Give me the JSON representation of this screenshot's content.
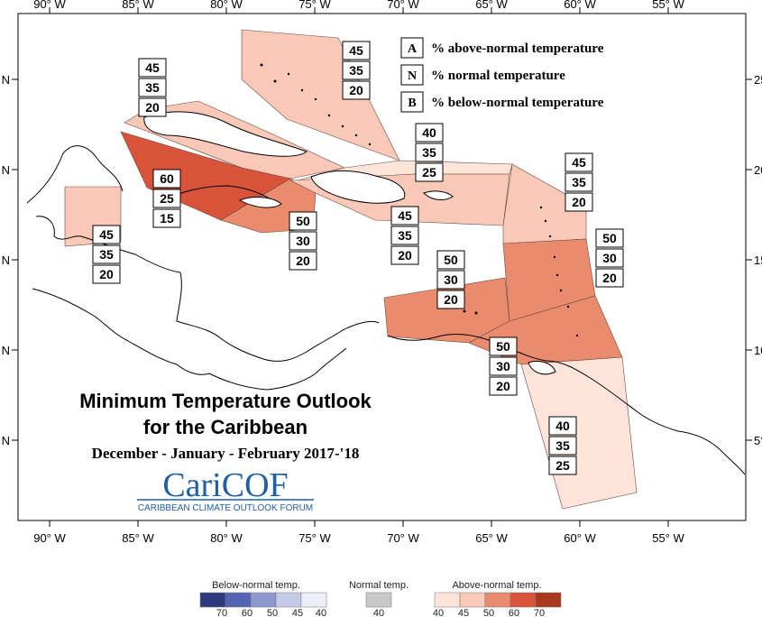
{
  "map": {
    "title_line1": "Minimum Temperature Outlook",
    "title_line2": "for the Caribbean",
    "period": "December - January - February 2017-'18",
    "logo": {
      "name": "CariCOF",
      "tagline": "CARIBBEAN CLIMATE OUTLOOK FORUM",
      "color": "#1f5fa8"
    },
    "longitude_labels": [
      "90° W",
      "85° W",
      "80° W",
      "75° W",
      "70° W",
      "65° W",
      "60° W",
      "55° W"
    ],
    "latitude_labels_left": [
      "N",
      "N",
      "N",
      "N",
      "N"
    ],
    "latitude_labels_right": [
      "25",
      "20",
      "15",
      "10",
      "5°"
    ],
    "key": [
      {
        "letter": "A",
        "text": "% above-normal temperature"
      },
      {
        "letter": "N",
        "text": "% normal temperature"
      },
      {
        "letter": "B",
        "text": "% below-normal temperature"
      }
    ],
    "regions": [
      {
        "id": "bahamas",
        "probs": [
          "45",
          "35",
          "20"
        ],
        "color": "#f9c8b6"
      },
      {
        "id": "cuba",
        "probs": [
          "45",
          "35",
          "20"
        ],
        "color": "#f9c8b6"
      },
      {
        "id": "cayman-jamaica-belt",
        "probs": [
          "60",
          "25",
          "15"
        ],
        "color": "#d9533a"
      },
      {
        "id": "belize",
        "probs": [
          "45",
          "35",
          "20"
        ],
        "color": "#f9c8b6"
      },
      {
        "id": "jamaica",
        "probs": [
          "50",
          "30",
          "20"
        ],
        "color": "#ea8b6e"
      },
      {
        "id": "turks-caicos",
        "probs": [
          "40",
          "35",
          "25"
        ],
        "color": "#fde4db"
      },
      {
        "id": "hispaniola-pr",
        "probs": [
          "45",
          "35",
          "20"
        ],
        "color": "#f9c8b6"
      },
      {
        "id": "leeward-islands",
        "probs": [
          "45",
          "35",
          "20"
        ],
        "color": "#f9c8b6"
      },
      {
        "id": "windward-islands",
        "probs": [
          "50",
          "30",
          "20"
        ],
        "color": "#ea8b6e"
      },
      {
        "id": "abc-islands",
        "probs": [
          "50",
          "30",
          "20"
        ],
        "color": "#ea8b6e"
      },
      {
        "id": "trinidad-barbados",
        "probs": [
          "50",
          "30",
          "20"
        ],
        "color": "#ea8b6e"
      },
      {
        "id": "guianas",
        "probs": [
          "40",
          "35",
          "25"
        ],
        "color": "#fde4db"
      }
    ]
  },
  "scale": {
    "below": {
      "caption": "Below-normal temp.",
      "labels": [
        "70",
        "60",
        "50",
        "45",
        "40"
      ],
      "colors": [
        "#2e3a7e",
        "#5563b3",
        "#8e97cf",
        "#c5c9e8",
        "#eceef8"
      ]
    },
    "normal": {
      "caption": "Normal temp.",
      "labels": [
        "40"
      ],
      "colors": [
        "#c8c8c8"
      ]
    },
    "above": {
      "caption": "Above-normal temp.",
      "labels": [
        "40",
        "45",
        "50",
        "60",
        "70"
      ],
      "colors": [
        "#fde4db",
        "#f9c8b6",
        "#ea8b6e",
        "#d9533a",
        "#a8391f"
      ]
    }
  }
}
